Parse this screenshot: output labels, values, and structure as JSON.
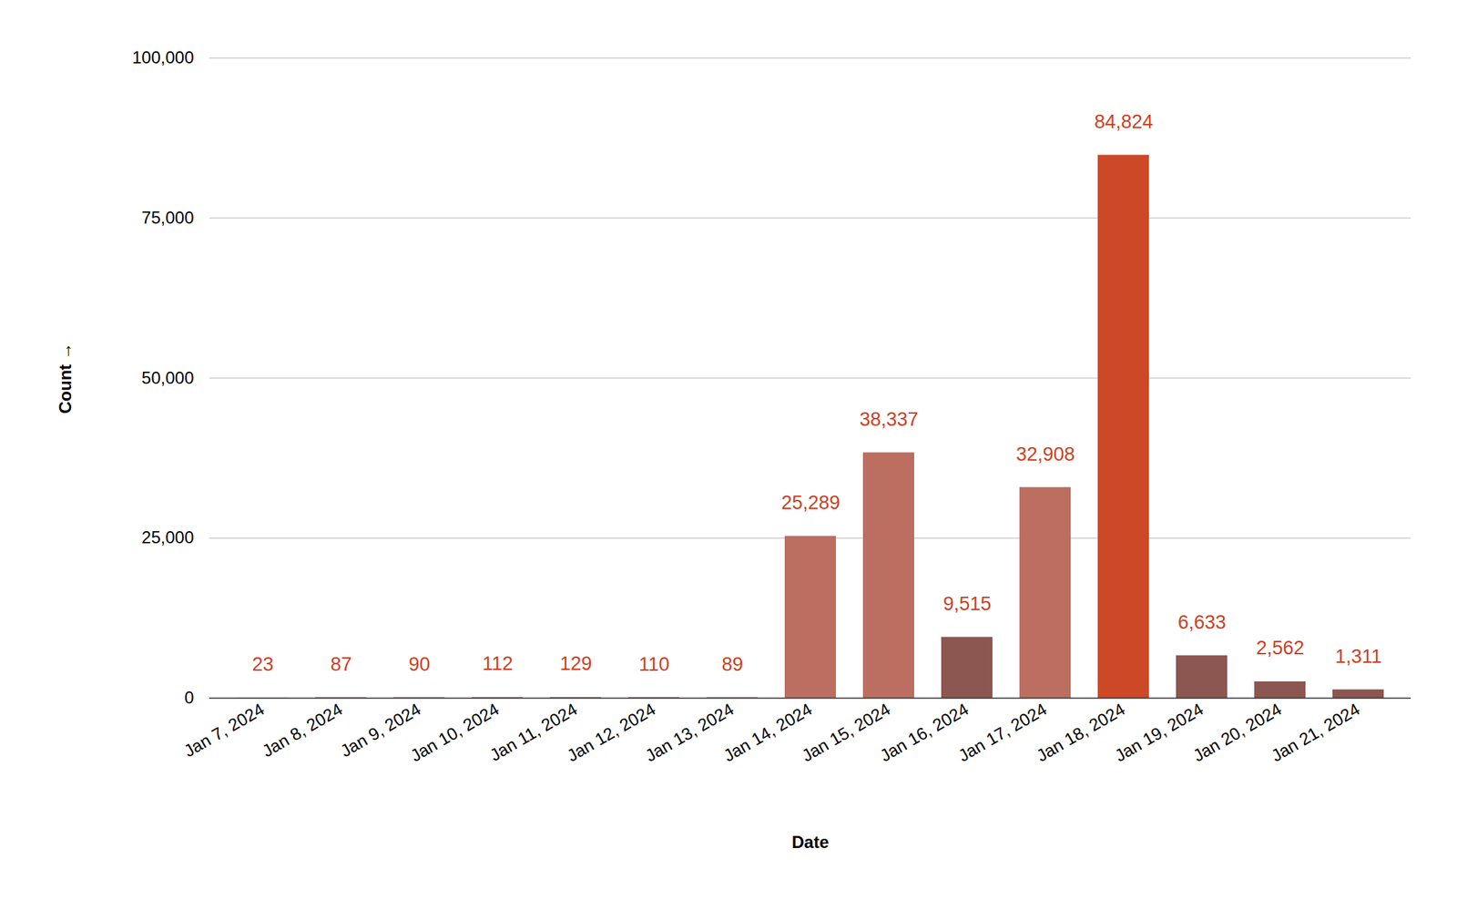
{
  "chart_data": {
    "type": "bar",
    "xlabel": "Date",
    "ylabel": "Count",
    "categories": [
      "Jan 7, 2024",
      "Jan 8, 2024",
      "Jan 9, 2024",
      "Jan 10, 2024",
      "Jan 11, 2024",
      "Jan 12, 2024",
      "Jan 13, 2024",
      "Jan 14, 2024",
      "Jan 15, 2024",
      "Jan 16, 2024",
      "Jan 17, 2024",
      "Jan 18, 2024",
      "Jan 19, 2024",
      "Jan 20, 2024",
      "Jan 21, 2024"
    ],
    "values": [
      23,
      87,
      90,
      112,
      129,
      110,
      89,
      25289,
      38337,
      9515,
      32908,
      84824,
      6633,
      2562,
      1311
    ],
    "value_labels": [
      "23",
      "87",
      "90",
      "112",
      "129",
      "110",
      "89",
      "25,289",
      "38,337",
      "9,515",
      "32,908",
      "84,824",
      "6,633",
      "2,562",
      "1,311"
    ],
    "colors": [
      "#bc6e60",
      "#bc6e60",
      "#bc6e60",
      "#bc6e60",
      "#bc6e60",
      "#bc6e60",
      "#bc6e60",
      "#bc6e60",
      "#bc6e60",
      "#8b5750",
      "#bc6e60",
      "#cc4827",
      "#8b5750",
      "#8b5750",
      "#8b5750"
    ],
    "ylim": [
      0,
      100000
    ],
    "yticks": [
      0,
      {
        "value": 25000,
        "label": "25,000"
      },
      {
        "value": 50000,
        "label": "50,000"
      },
      {
        "value": 75000,
        "label": "75,000"
      },
      {
        "value": 100000,
        "label": "100,000"
      }
    ],
    "grid": true,
    "data_labels": true
  }
}
